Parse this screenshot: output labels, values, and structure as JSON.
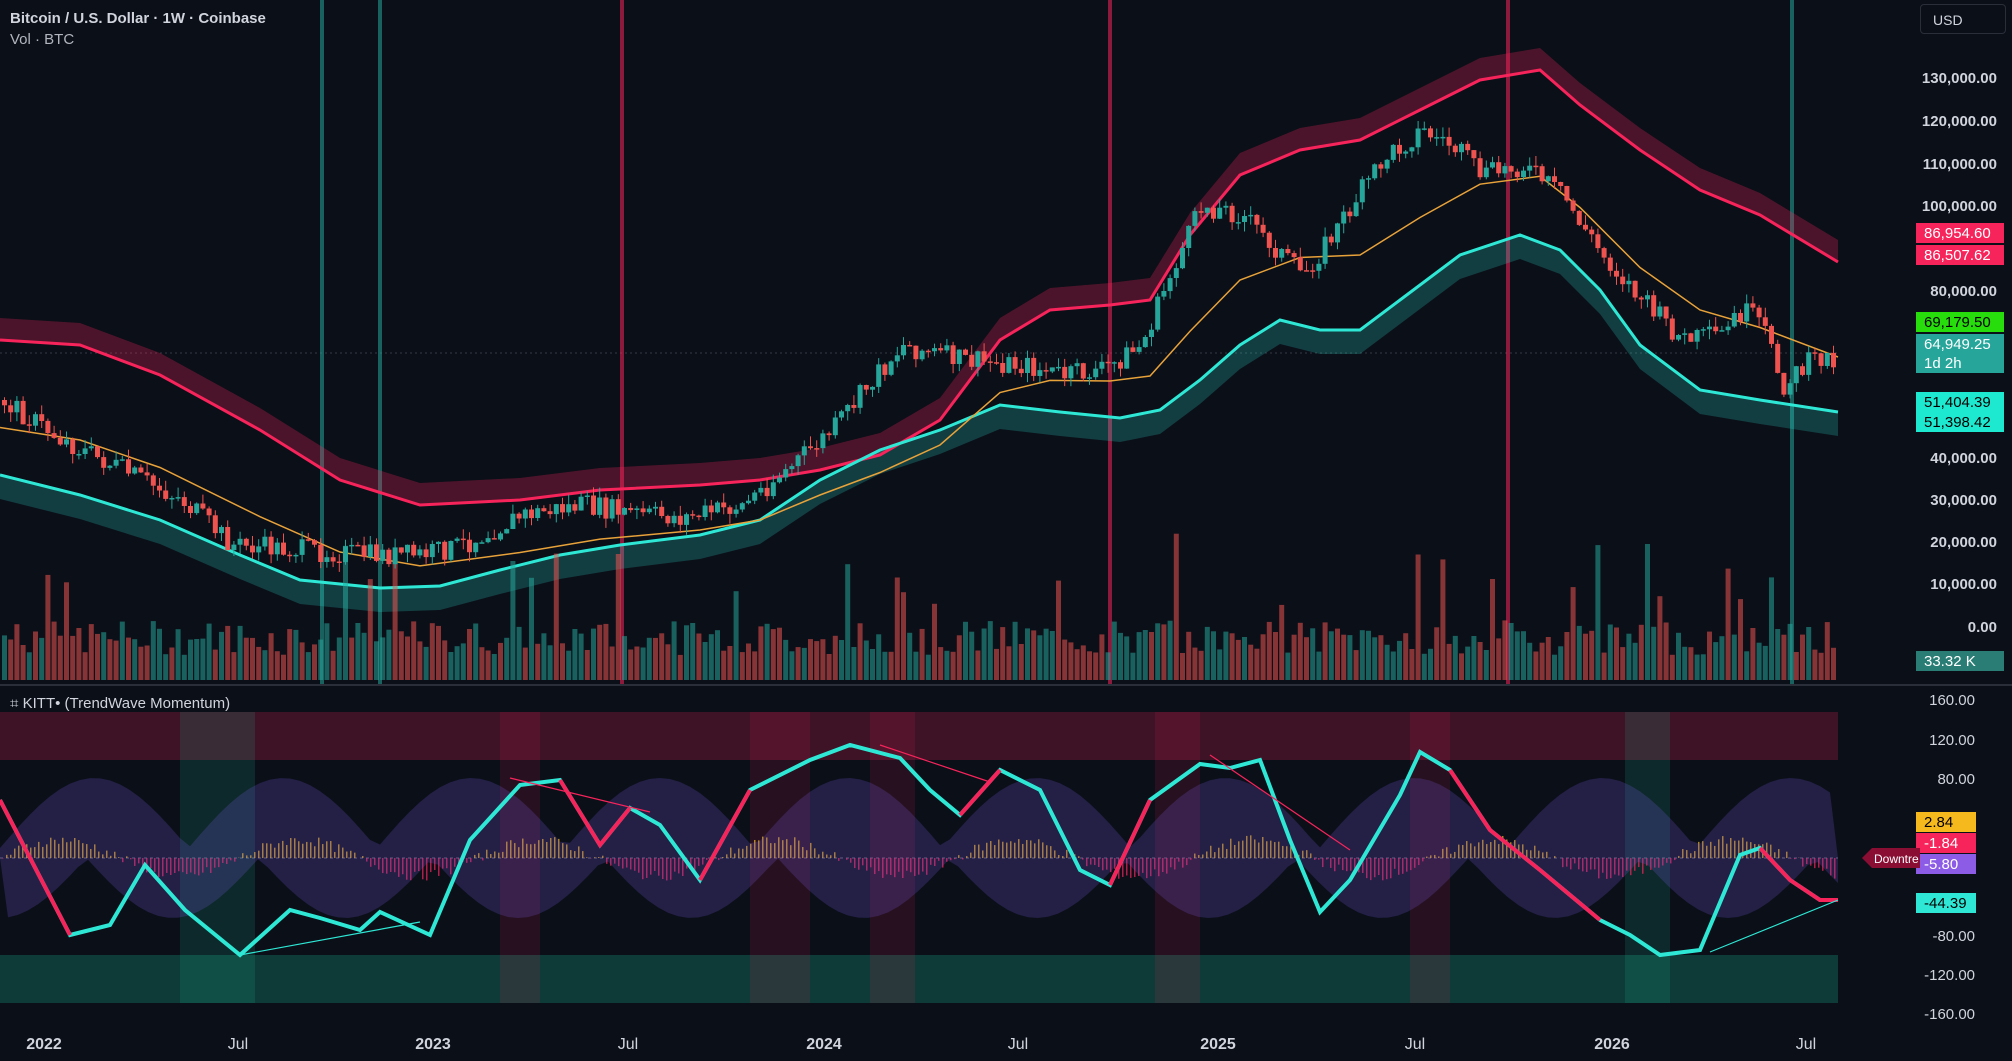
{
  "header": {
    "title": "Bitcoin / U.S. Dollar · 1W · Coinbase",
    "volume_label": "Vol · BTC"
  },
  "currency": "USD",
  "indicator": {
    "title": "⌗ KITT• (TrendWave Momentum)",
    "tag_label": "Downtre"
  },
  "price_axis": {
    "ticks": [
      "130,000.00",
      "120,000.00",
      "110,000.00",
      "100,000.00",
      "80,000.00",
      "60,000.00",
      "40,000.00",
      "30,000.00",
      "20,000.00",
      "10,000.00",
      "0.00"
    ]
  },
  "price_badges": [
    {
      "label": "86,954.60",
      "color": "#f7245b",
      "text": "#ffffff"
    },
    {
      "label": "86,507.62",
      "color": "#f7245b",
      "text": "#ffffff"
    },
    {
      "label": "69,179.50",
      "color": "#28dd0c",
      "text": "#000000"
    },
    {
      "label": "64,949.25",
      "color": "#26a69a",
      "text": "#ffffff"
    },
    {
      "label": "1d 2h",
      "color": "#26a69a",
      "text": "#ffffff"
    },
    {
      "label": "51,404.39",
      "color": "#1de9d0",
      "text": "#000000"
    },
    {
      "label": "51,398.42",
      "color": "#1de9d0",
      "text": "#000000"
    },
    {
      "label": "33.32 K",
      "color": "#2a7d74",
      "text": "#ffffff"
    }
  ],
  "indicator_axis": {
    "ticks": [
      "160.00",
      "120.00",
      "80.00",
      "-80.00",
      "-120.00",
      "-160.00"
    ]
  },
  "indicator_badges": [
    {
      "label": "2.84",
      "color": "#f5b91e",
      "text": "#000000"
    },
    {
      "label": "-1.84",
      "color": "#f7245b",
      "text": "#ffffff"
    },
    {
      "label": "-5.80",
      "color": "#8c5ce6",
      "text": "#ffffff"
    },
    {
      "label": "-44.39",
      "color": "#2ee8d5",
      "text": "#000000"
    }
  ],
  "time_axis": {
    "labels": [
      "2022",
      "Jul",
      "2023",
      "Jul",
      "2024",
      "Jul",
      "2025",
      "Jul",
      "2026",
      "Jul"
    ]
  },
  "colors": {
    "bull": "#26a69a",
    "bear": "#ef5350",
    "upper_band": "#f7245b",
    "lower_band": "#2ee8d5",
    "ema": "#e8a23a",
    "background": "#0b0f18"
  }
}
